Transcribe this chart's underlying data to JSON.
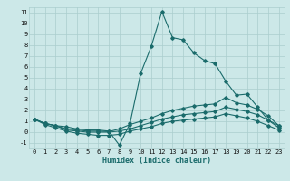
{
  "xlabel": "Humidex (Indice chaleur)",
  "background_color": "#cce8e8",
  "line_color": "#1a6b6b",
  "grid_color": "#aacece",
  "xlim": [
    -0.5,
    23.5
  ],
  "ylim": [
    -1.5,
    11.5
  ],
  "xticks": [
    0,
    1,
    2,
    3,
    4,
    5,
    6,
    7,
    8,
    9,
    10,
    11,
    12,
    13,
    14,
    15,
    16,
    17,
    18,
    19,
    20,
    21,
    22,
    23
  ],
  "yticks": [
    -1,
    0,
    1,
    2,
    3,
    4,
    5,
    6,
    7,
    8,
    9,
    10,
    11
  ],
  "line1_x": [
    0,
    1,
    2,
    3,
    4,
    5,
    6,
    7,
    8,
    9,
    10,
    11,
    12,
    13,
    14,
    15,
    16,
    17,
    18,
    19,
    20,
    21,
    22,
    23
  ],
  "line1_y": [
    1.2,
    0.8,
    0.6,
    0.5,
    0.3,
    0.2,
    0.2,
    0.1,
    -1.2,
    0.8,
    5.4,
    7.9,
    11.1,
    8.7,
    8.5,
    7.3,
    6.6,
    6.3,
    4.7,
    3.4,
    3.5,
    2.3,
    1.1,
    0.6
  ],
  "line2_x": [
    0,
    1,
    2,
    3,
    4,
    5,
    6,
    7,
    8,
    9,
    10,
    11,
    12,
    13,
    14,
    15,
    16,
    17,
    18,
    19,
    20,
    21,
    22,
    23
  ],
  "line2_y": [
    1.2,
    0.8,
    0.6,
    0.3,
    0.2,
    0.1,
    0.1,
    0.05,
    0.3,
    0.7,
    1.0,
    1.3,
    1.7,
    2.0,
    2.2,
    2.4,
    2.5,
    2.6,
    3.2,
    2.7,
    2.5,
    2.1,
    1.5,
    0.6
  ],
  "line3_x": [
    0,
    1,
    2,
    3,
    4,
    5,
    6,
    7,
    8,
    9,
    10,
    11,
    12,
    13,
    14,
    15,
    16,
    17,
    18,
    19,
    20,
    21,
    22,
    23
  ],
  "line3_y": [
    1.2,
    0.8,
    0.6,
    0.2,
    0.1,
    0.0,
    0.0,
    0.0,
    0.1,
    0.3,
    0.6,
    0.9,
    1.2,
    1.4,
    1.6,
    1.7,
    1.8,
    1.9,
    2.3,
    2.1,
    1.9,
    1.6,
    1.1,
    0.4
  ],
  "line4_x": [
    0,
    1,
    2,
    3,
    4,
    5,
    6,
    7,
    8,
    9,
    10,
    11,
    12,
    13,
    14,
    15,
    16,
    17,
    18,
    19,
    20,
    21,
    22,
    23
  ],
  "line4_y": [
    1.2,
    0.7,
    0.4,
    0.1,
    -0.1,
    -0.2,
    -0.3,
    -0.3,
    -0.2,
    0.1,
    0.3,
    0.5,
    0.8,
    1.0,
    1.1,
    1.2,
    1.3,
    1.4,
    1.7,
    1.5,
    1.3,
    1.0,
    0.6,
    0.2
  ],
  "tick_fontsize": 5.0,
  "xlabel_fontsize": 6.0
}
